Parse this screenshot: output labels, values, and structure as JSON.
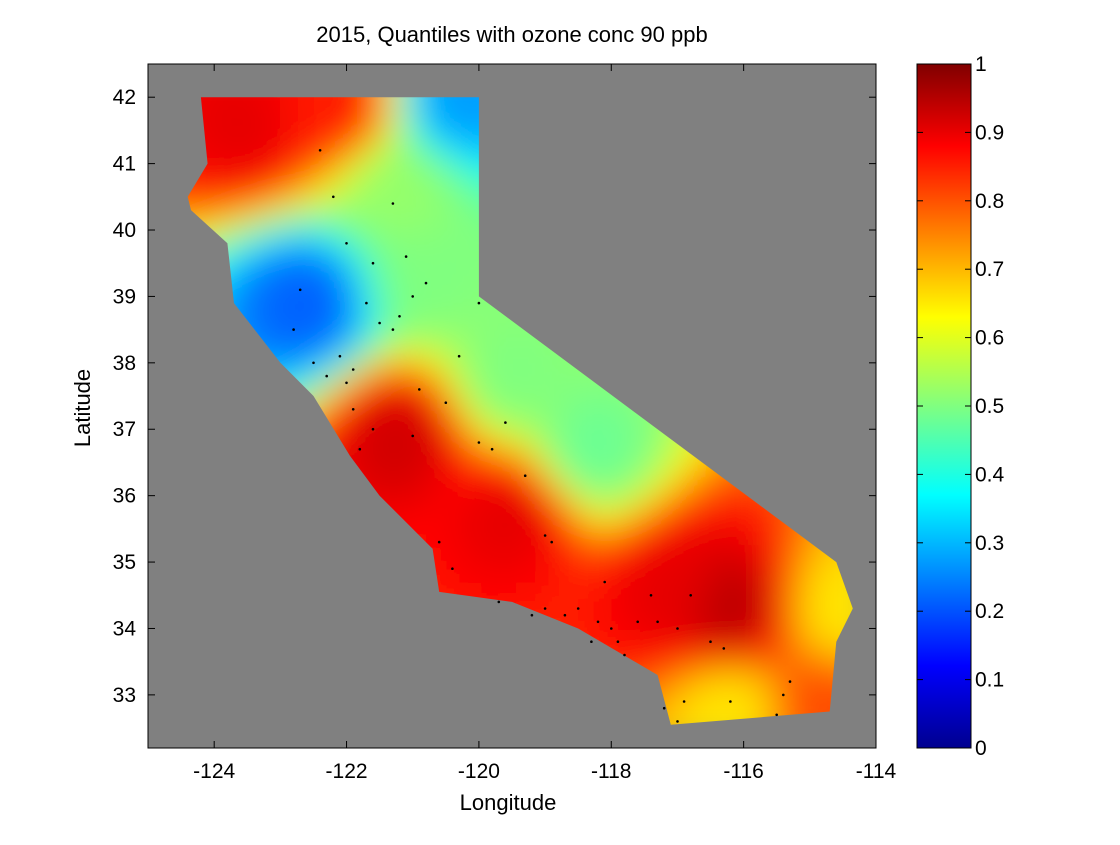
{
  "chart_data": {
    "type": "heatmap",
    "title": "2015, Quantiles with ozone conc 90 ppb",
    "xlabel": "Longitude",
    "ylabel": "Latitude",
    "xlim": [
      -125,
      -114
    ],
    "ylim": [
      32.2,
      42.5
    ],
    "x_ticks": [
      -124,
      -122,
      -120,
      -118,
      -116,
      -114
    ],
    "y_ticks": [
      33,
      34,
      35,
      36,
      37,
      38,
      39,
      40,
      41,
      42
    ],
    "x_tick_labels": [
      "-124",
      "-122",
      "-120",
      "-118",
      "-116",
      "-114"
    ],
    "y_tick_labels": [
      "33",
      "34",
      "35",
      "36",
      "37",
      "38",
      "39",
      "40",
      "41",
      "42"
    ],
    "background_color": "#808080",
    "colormap": "jet",
    "colorbar": {
      "range": [
        0,
        1
      ],
      "ticks": [
        0,
        0.1,
        0.2,
        0.3,
        0.4,
        0.5,
        0.6,
        0.7,
        0.8,
        0.9,
        1
      ],
      "tick_labels": [
        "0",
        "0.1",
        "0.2",
        "0.3",
        "0.4",
        "0.5",
        "0.6",
        "0.7",
        "0.8",
        "0.9",
        "1"
      ]
    },
    "region_outline": [
      [
        -124.2,
        42.0
      ],
      [
        -120.0,
        42.0
      ],
      [
        -120.0,
        39.0
      ],
      [
        -114.6,
        35.0
      ],
      [
        -114.35,
        34.3
      ],
      [
        -114.6,
        33.8
      ],
      [
        -114.7,
        32.75
      ],
      [
        -117.1,
        32.55
      ],
      [
        -117.3,
        33.3
      ],
      [
        -118.5,
        34.0
      ],
      [
        -119.5,
        34.4
      ],
      [
        -120.6,
        34.55
      ],
      [
        -120.7,
        35.2
      ],
      [
        -121.5,
        36.0
      ],
      [
        -121.95,
        36.6
      ],
      [
        -122.5,
        37.5
      ],
      [
        -123.0,
        38.0
      ],
      [
        -123.7,
        38.9
      ],
      [
        -123.8,
        39.8
      ],
      [
        -124.35,
        40.3
      ],
      [
        -124.4,
        40.5
      ],
      [
        -124.1,
        41.0
      ],
      [
        -124.2,
        42.0
      ]
    ],
    "field_anchor_values": [
      {
        "lon": -123.5,
        "lat": 41.6,
        "value": 0.9
      },
      {
        "lon": -122.2,
        "lat": 41.9,
        "value": 0.85
      },
      {
        "lon": -120.3,
        "lat": 41.95,
        "value": 0.28
      },
      {
        "lon": -121.2,
        "lat": 40.6,
        "value": 0.52
      },
      {
        "lon": -122.6,
        "lat": 38.9,
        "value": 0.22
      },
      {
        "lon": -120.8,
        "lat": 39.3,
        "value": 0.5
      },
      {
        "lon": -119.5,
        "lat": 37.8,
        "value": 0.5
      },
      {
        "lon": -118.3,
        "lat": 36.7,
        "value": 0.48
      },
      {
        "lon": -121.2,
        "lat": 36.9,
        "value": 0.92
      },
      {
        "lon": -119.5,
        "lat": 35.7,
        "value": 0.9
      },
      {
        "lon": -116.2,
        "lat": 34.3,
        "value": 0.94
      },
      {
        "lon": -117.0,
        "lat": 34.6,
        "value": 0.9
      },
      {
        "lon": -114.5,
        "lat": 34.3,
        "value": 0.65
      },
      {
        "lon": -116.2,
        "lat": 32.75,
        "value": 0.65
      },
      {
        "lon": -114.8,
        "lat": 32.8,
        "value": 0.8
      }
    ],
    "monitoring_sites": [
      [
        -122.5,
        38.0
      ],
      [
        -122.3,
        37.8
      ],
      [
        -122.0,
        37.7
      ],
      [
        -121.9,
        37.3
      ],
      [
        -121.6,
        37.0
      ],
      [
        -121.8,
        36.7
      ],
      [
        -121.3,
        38.5
      ],
      [
        -121.5,
        38.6
      ],
      [
        -121.2,
        38.7
      ],
      [
        -121.0,
        39.0
      ],
      [
        -121.6,
        39.5
      ],
      [
        -122.0,
        39.8
      ],
      [
        -122.2,
        40.5
      ],
      [
        -121.3,
        40.4
      ],
      [
        -122.4,
        41.2
      ],
      [
        -120.8,
        39.2
      ],
      [
        -120.0,
        38.9
      ],
      [
        -120.5,
        37.4
      ],
      [
        -120.0,
        36.8
      ],
      [
        -119.8,
        36.7
      ],
      [
        -119.3,
        36.3
      ],
      [
        -119.0,
        35.4
      ],
      [
        -118.9,
        35.3
      ],
      [
        -118.5,
        34.3
      ],
      [
        -118.2,
        34.1
      ],
      [
        -118.0,
        34.0
      ],
      [
        -117.9,
        33.8
      ],
      [
        -117.6,
        34.1
      ],
      [
        -117.3,
        34.1
      ],
      [
        -117.0,
        34.0
      ],
      [
        -116.5,
        33.8
      ],
      [
        -117.2,
        32.8
      ],
      [
        -117.0,
        32.6
      ],
      [
        -116.9,
        32.9
      ],
      [
        -115.5,
        32.7
      ],
      [
        -115.4,
        33.0
      ],
      [
        -120.6,
        35.3
      ],
      [
        -120.4,
        34.9
      ],
      [
        -119.7,
        34.4
      ],
      [
        -119.2,
        34.2
      ],
      [
        -116.8,
        34.5
      ],
      [
        -117.4,
        34.5
      ],
      [
        -118.1,
        34.7
      ],
      [
        -117.8,
        33.6
      ],
      [
        -118.3,
        33.8
      ],
      [
        -121.9,
        37.9
      ],
      [
        -122.1,
        38.1
      ],
      [
        -120.9,
        37.6
      ],
      [
        -121.0,
        36.9
      ],
      [
        -119.6,
        37.1
      ],
      [
        -118.7,
        34.2
      ],
      [
        -119.0,
        34.3
      ],
      [
        -116.3,
        33.7
      ],
      [
        -116.2,
        32.9
      ],
      [
        -115.3,
        33.2
      ],
      [
        -122.8,
        38.5
      ],
      [
        -122.7,
        39.1
      ],
      [
        -121.7,
        38.9
      ],
      [
        -121.1,
        39.6
      ],
      [
        -120.3,
        38.1
      ]
    ]
  }
}
